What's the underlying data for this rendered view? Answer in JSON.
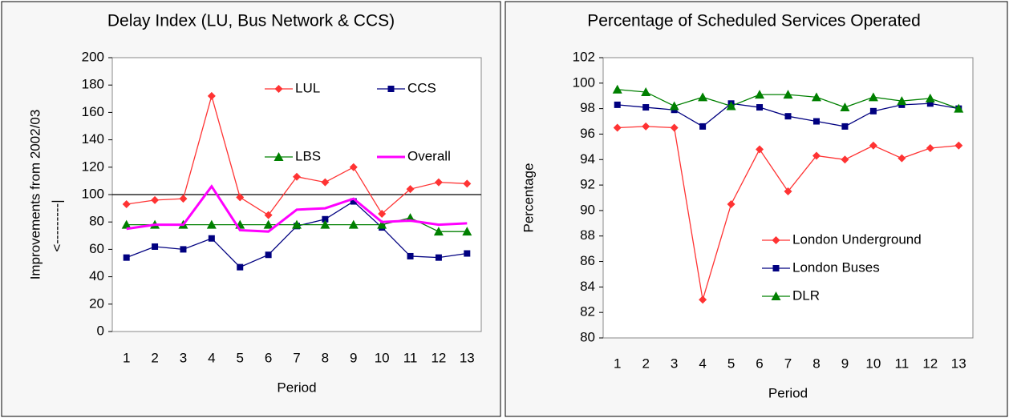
{
  "chart_data": [
    {
      "type": "line",
      "title": "Delay Index (LU, Bus Network & CCS)",
      "x_label": "Period",
      "y_label": "Improvements from 2002/03",
      "annotation": "<---------|",
      "categories": [
        "1",
        "2",
        "3",
        "4",
        "5",
        "6",
        "7",
        "8",
        "9",
        "10",
        "11",
        "12",
        "13"
      ],
      "ylim": [
        0,
        200
      ],
      "yticks": [
        0,
        20,
        40,
        60,
        80,
        100,
        120,
        140,
        160,
        180,
        200
      ],
      "reference_line": 100,
      "grid": false,
      "legend": "upper right",
      "series": [
        {
          "name": "LUL",
          "color": "#ff3333",
          "marker": "diamond",
          "values": [
            93,
            96,
            97,
            172,
            98,
            85,
            113,
            109,
            120,
            86,
            104,
            109,
            108
          ]
        },
        {
          "name": "CCS",
          "color": "#000080",
          "marker": "square",
          "values": [
            54,
            62,
            60,
            68,
            47,
            56,
            77,
            82,
            95,
            76,
            55,
            54,
            57
          ]
        },
        {
          "name": "LBS",
          "color": "#008000",
          "marker": "triangle",
          "values": [
            78,
            78,
            78,
            78,
            78,
            78,
            78,
            78,
            78,
            78,
            83,
            73,
            73
          ]
        },
        {
          "name": "Overall",
          "color": "#ff00ff",
          "marker": "none",
          "values": [
            75,
            78,
            78,
            106,
            74,
            73,
            89,
            90,
            97,
            80,
            81,
            78,
            79
          ]
        }
      ]
    },
    {
      "type": "line",
      "title": "Percentage of Scheduled Services Operated",
      "x_label": "Period",
      "y_label": "Percentage",
      "categories": [
        "1",
        "2",
        "3",
        "4",
        "5",
        "6",
        "7",
        "8",
        "9",
        "10",
        "11",
        "12",
        "13"
      ],
      "ylim": [
        80,
        102
      ],
      "yticks": [
        80,
        82,
        84,
        86,
        88,
        90,
        92,
        94,
        96,
        98,
        100,
        102
      ],
      "grid": false,
      "legend": "lower right",
      "series": [
        {
          "name": "London Underground",
          "color": "#ff3333",
          "marker": "diamond",
          "values": [
            96.5,
            96.6,
            96.5,
            83.0,
            90.5,
            94.8,
            91.5,
            94.3,
            94.0,
            95.1,
            94.1,
            94.9,
            95.1
          ]
        },
        {
          "name": "London Buses",
          "color": "#000080",
          "marker": "square",
          "values": [
            98.3,
            98.1,
            97.9,
            96.6,
            98.4,
            98.1,
            97.4,
            97.0,
            96.6,
            97.8,
            98.3,
            98.4,
            98.0
          ]
        },
        {
          "name": "DLR",
          "color": "#008000",
          "marker": "triangle",
          "values": [
            99.5,
            99.3,
            98.2,
            98.9,
            98.2,
            99.1,
            99.1,
            98.9,
            98.1,
            98.9,
            98.6,
            98.8,
            98.0
          ]
        }
      ]
    }
  ]
}
